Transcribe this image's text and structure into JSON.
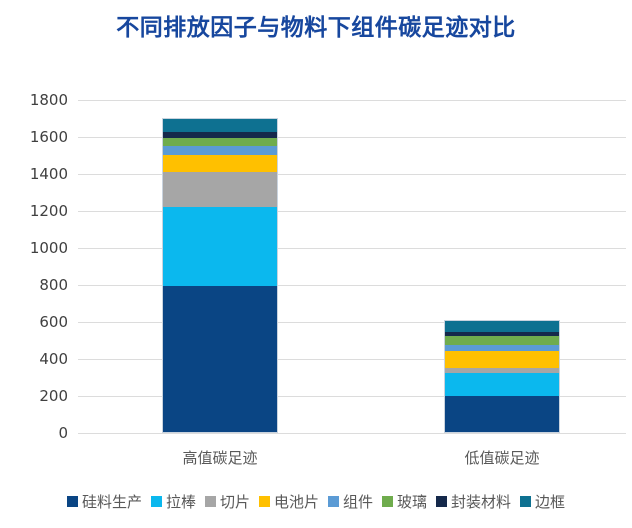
{
  "chart_data": {
    "type": "bar",
    "stacked": true,
    "title": "不同排放因子与物料下组件碳足迹对比",
    "categories": [
      "高值碳足迹",
      "低值碳足迹"
    ],
    "series": [
      {
        "name": "硅料生产",
        "color": "#0A4584",
        "values": [
          790,
          195
        ]
      },
      {
        "name": "拉棒",
        "color": "#0BB8EE",
        "values": [
          425,
          125
        ]
      },
      {
        "name": "切片",
        "color": "#A6A6A6",
        "values": [
          190,
          25
        ]
      },
      {
        "name": "电池片",
        "color": "#FFC000",
        "values": [
          90,
          95
        ]
      },
      {
        "name": "组件",
        "color": "#5B9BD5",
        "values": [
          50,
          30
        ]
      },
      {
        "name": "玻璃",
        "color": "#6FAC4D",
        "values": [
          45,
          50
        ]
      },
      {
        "name": "封装材料",
        "color": "#15294B",
        "values": [
          30,
          22
        ]
      },
      {
        "name": "边框",
        "color": "#0E7191",
        "values": [
          70,
          56
        ]
      }
    ],
    "totals": [
      1690,
      598
    ],
    "ylim": [
      0,
      1800
    ],
    "ytick_step": 200,
    "xlabel": "",
    "ylabel": "",
    "grid": true,
    "legend_position": "bottom"
  },
  "style": {
    "title_color": "#17479E",
    "axis_tick_color": "#404040",
    "category_label_color": "#595959",
    "legend_text_color": "#595959",
    "gridline_color": "#DCDCDC",
    "background": "#FFFFFF"
  }
}
